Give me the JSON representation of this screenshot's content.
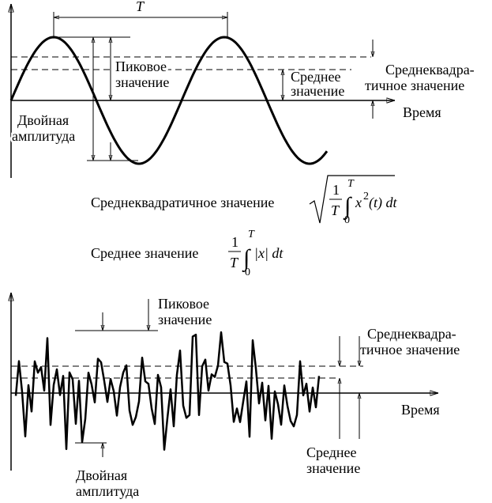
{
  "top": {
    "period": "T",
    "peak": [
      "Пиковое",
      "значение"
    ],
    "mean": [
      "Среднее",
      "значение"
    ],
    "rms": [
      "Среднеквадра-",
      "тичное значение"
    ],
    "time": "Время",
    "double": [
      "Двойная",
      "амплитуда"
    ]
  },
  "formulas": {
    "rms": {
      "label": "Среднеквадратичное значение",
      "num": "1",
      "den": "T",
      "upper": "T",
      "lower": "0",
      "integrand": "x",
      "power": "2",
      "tail": "(t) dt"
    },
    "mean": {
      "label": "Среднее значение",
      "num": "1",
      "den": "T",
      "upper": "T",
      "lower": "0",
      "integrand": "|x| dt"
    }
  },
  "bottom": {
    "peak": [
      "Пиковое",
      "значение"
    ],
    "rms": [
      "Среднеквадра-",
      "тичное значение"
    ],
    "time": "Время",
    "mean": [
      "Среднее",
      "значение"
    ],
    "double": [
      "Двойная",
      "амплитуда"
    ]
  }
}
